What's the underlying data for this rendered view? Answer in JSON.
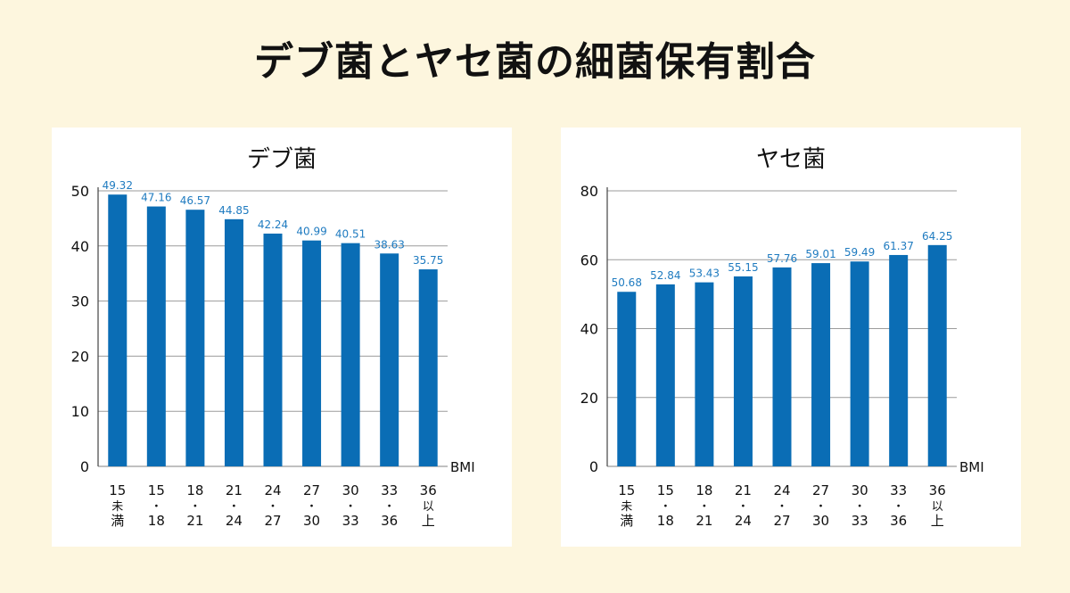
{
  "title": "デブ菌とヤセ菌の細菌保有割合",
  "colors": {
    "background": "#fdf6de",
    "bar": "#0a6db5",
    "label": "#1f7bc0",
    "grid": "#9b9b9b"
  },
  "chart_data": [
    {
      "type": "bar",
      "title": "デブ菌",
      "xlabel": "BMI",
      "ylabel": "",
      "ylim": [
        0,
        50
      ],
      "yticks": [
        "0",
        "10",
        "20",
        "30",
        "40",
        "50"
      ],
      "grid": true,
      "categories": [
        [
          "15",
          "未",
          "満"
        ],
        [
          "15",
          "・",
          "18"
        ],
        [
          "18",
          "・",
          "21"
        ],
        [
          "21",
          "・",
          "24"
        ],
        [
          "24",
          "・",
          "27"
        ],
        [
          "27",
          "・",
          "30"
        ],
        [
          "30",
          "・",
          "33"
        ],
        [
          "33",
          "・",
          "36"
        ],
        [
          "36",
          "以",
          "上"
        ]
      ],
      "values": [
        49.32,
        47.16,
        46.57,
        44.85,
        42.24,
        40.99,
        40.51,
        38.63,
        35.75
      ],
      "value_labels": [
        "49.32",
        "47.16",
        "46.57",
        "44.85",
        "42.24",
        "40.99",
        "40.51",
        "38.63",
        "35.75"
      ]
    },
    {
      "type": "bar",
      "title": "ヤセ菌",
      "xlabel": "BMI",
      "ylabel": "",
      "ylim": [
        0,
        80
      ],
      "yticks": [
        "0",
        "20",
        "40",
        "60",
        "80"
      ],
      "grid": true,
      "categories": [
        [
          "15",
          "未",
          "満"
        ],
        [
          "15",
          "・",
          "18"
        ],
        [
          "18",
          "・",
          "21"
        ],
        [
          "21",
          "・",
          "24"
        ],
        [
          "24",
          "・",
          "27"
        ],
        [
          "27",
          "・",
          "30"
        ],
        [
          "30",
          "・",
          "33"
        ],
        [
          "33",
          "・",
          "36"
        ],
        [
          "36",
          "以",
          "上"
        ]
      ],
      "values": [
        50.68,
        52.84,
        53.43,
        55.15,
        57.76,
        59.01,
        59.49,
        61.37,
        64.25
      ],
      "value_labels": [
        "50.68",
        "52.84",
        "53.43",
        "55.15",
        "57.76",
        "59.01",
        "59.49",
        "61.37",
        "64.25"
      ]
    }
  ]
}
